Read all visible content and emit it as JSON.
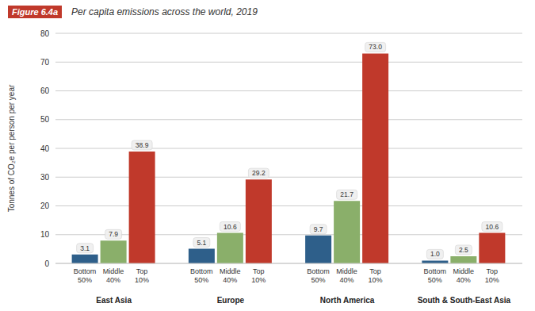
{
  "chart_data": {
    "type": "bar",
    "title": "Per capita emissions across the world, 2019",
    "annotations": [
      "Figure 6.4a"
    ],
    "ylabel": "Tonnes of CO₂e per person per year",
    "categories": [
      "East Asia",
      "Europe",
      "North America",
      "South & South-East Asia"
    ],
    "series": [
      {
        "name": "Bottom 50%",
        "color": "#2e5f8a",
        "values": [
          3.1,
          5.1,
          9.7,
          1.0
        ],
        "value_labels": [
          "3.1",
          "5.1",
          "9.7",
          "1.0"
        ]
      },
      {
        "name": "Middle 40%",
        "color": "#8aaf6a",
        "values": [
          7.9,
          10.6,
          21.7,
          2.5
        ],
        "value_labels": [
          "7.9",
          "10.6",
          "21.7",
          "2.5"
        ]
      },
      {
        "name": "Top 10%",
        "color": "#c0392b",
        "values": [
          38.9,
          29.2,
          73.0,
          10.6
        ],
        "value_labels": [
          "38.9",
          "29.2",
          "73.0",
          "10.6"
        ]
      }
    ],
    "ylim": [
      0,
      80
    ],
    "yticks": [
      0,
      10,
      20,
      30,
      40,
      50,
      60,
      70,
      80
    ],
    "grid": true,
    "data_labels": true
  }
}
